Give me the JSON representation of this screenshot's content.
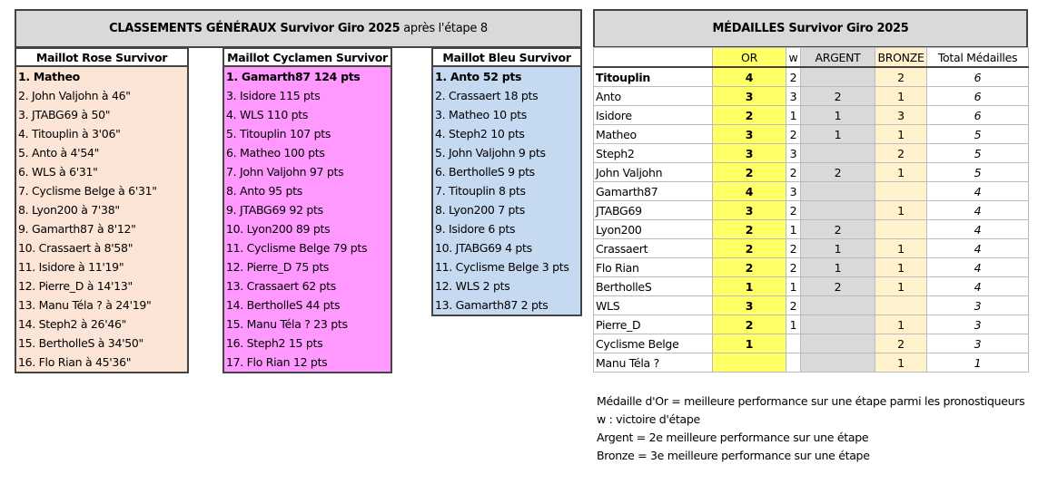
{
  "general": {
    "title_bold": "CLASSEMENTS GÉNÉRAUX Survivor Giro 2025",
    "title_rest": " après l'étape 8",
    "rose": {
      "header": "Maillot Rose Survivor",
      "items": [
        "1. Matheo",
        "2. John Valjohn à 46\"",
        "3. JTABG69 à 50\"",
        "4. Titouplin à 3'06\"",
        "5. Anto à 4'54\"",
        "6. WLS à 6'31\"",
        "7. Cyclisme Belge à 6'31\"",
        "8. Lyon200 à 7'38\"",
        "9. Gamarth87 à 8'12\"",
        "10. Crassaert à 8'58\"",
        "11. Isidore à 11'19\"",
        "12. Pierre_D à 14'13\"",
        "13. Manu Téla ? à 24'19\"",
        "14. Steph2 à 26'46\"",
        "15. BertholleS à 34'50\"",
        "16. Flo Rian à 45'36\""
      ]
    },
    "cyclamen": {
      "header": "Maillot Cyclamen Survivor",
      "items": [
        "1. Gamarth87 124 pts",
        "3. Isidore 115 pts",
        "4. WLS 110 pts",
        "5. Titouplin 107 pts",
        "6. Matheo 100 pts",
        "7. John Valjohn 97 pts",
        "8. Anto 95 pts",
        "9. JTABG69 92 pts",
        "10. Lyon200 89 pts",
        "11. Cyclisme Belge 79 pts",
        "12. Pierre_D 75 pts",
        "13. Crassaert 62 pts",
        "14. BertholleS 44 pts",
        "15. Manu Téla ? 23 pts",
        "16. Steph2 15 pts",
        "17. Flo Rian 12 pts"
      ]
    },
    "bleu": {
      "header": "Maillot Bleu Survivor",
      "items": [
        "1. Anto 52 pts",
        "2. Crassaert 18 pts",
        "3. Matheo 10 pts",
        "4. Steph2 10 pts",
        "5. John Valjohn 9 pts",
        "6. BertholleS 9 pts",
        "7. Titouplin 8 pts",
        "8. Lyon200 7 pts",
        "9. Isidore 6 pts",
        "10. JTABG69 4 pts",
        "11. Cyclisme Belge 3 pts",
        "12. WLS 2 pts",
        "13. Gamarth87 2 pts"
      ]
    }
  },
  "medals": {
    "title": "MÉDAILLES Survivor Giro 2025",
    "headers": [
      "",
      "OR",
      "w",
      "ARGENT",
      "BRONZE",
      "Total Médailles"
    ],
    "rows": [
      [
        "Titouplin",
        "4",
        "2",
        "",
        "2",
        "6"
      ],
      [
        "Anto",
        "3",
        "3",
        "2",
        "1",
        "6"
      ],
      [
        "Isidore",
        "2",
        "1",
        "1",
        "3",
        "6"
      ],
      [
        "Matheo",
        "3",
        "2",
        "1",
        "1",
        "5"
      ],
      [
        "Steph2",
        "3",
        "3",
        "",
        "2",
        "5"
      ],
      [
        "John Valjohn",
        "2",
        "2",
        "2",
        "1",
        "5"
      ],
      [
        "Gamarth87",
        "4",
        "3",
        "",
        "",
        "4"
      ],
      [
        "JTABG69",
        "3",
        "2",
        "",
        "1",
        "4"
      ],
      [
        "Lyon200",
        "2",
        "1",
        "2",
        "",
        "4"
      ],
      [
        "Crassaert",
        "2",
        "2",
        "1",
        "1",
        "4"
      ],
      [
        "Flo Rian",
        "2",
        "2",
        "1",
        "1",
        "4"
      ],
      [
        "BertholleS",
        "1",
        "1",
        "2",
        "1",
        "4"
      ],
      [
        "WLS",
        "3",
        "2",
        "",
        "",
        "3"
      ],
      [
        "Pierre_D",
        "2",
        "1",
        "",
        "1",
        "3"
      ],
      [
        "Cyclisme Belge",
        "1",
        "",
        "",
        "2",
        "3"
      ],
      [
        "Manu Téla ?",
        "",
        "",
        "",
        "1",
        "1"
      ]
    ]
  },
  "notes": [
    "Médaille d'Or = meilleure performance sur une étape parmi les pronostiqueurs",
    "w : victoire d'étape",
    "Argent = 2e meilleure performance sur une étape",
    "Bronze = 3e meilleure performance sur une étape"
  ],
  "colors": {
    "rose": "#fce4d6",
    "cyclamen": "#ff99ff",
    "bleu": "#c5d9f1",
    "or": "#ffff66",
    "argent": "#d9d9d9",
    "bronze": "#fff2cc"
  }
}
